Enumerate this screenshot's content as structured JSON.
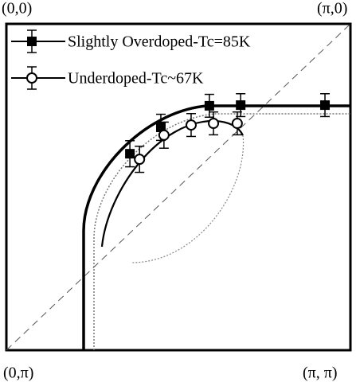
{
  "chart_data": {
    "type": "scatter",
    "annotations": [
      "(0,0)",
      "(π,0)",
      "(0,π)",
      "(π, π)"
    ],
    "xlim": [
      0,
      1
    ],
    "ylim": [
      1,
      0
    ],
    "series": [
      {
        "name": "Slightly Overdoped-Tc=85K",
        "marker": "square",
        "color": "#000000",
        "x": [
          0.359,
          0.449,
          0.59,
          0.681,
          0.926
        ],
        "values": [
          0.398,
          0.317,
          0.251,
          0.249,
          0.249
        ],
        "errors": [
          0.04,
          0.04,
          0.035,
          0.035,
          0.035
        ]
      },
      {
        "name": "Underdoped-Tc~67K",
        "marker": "circle",
        "color": "#000000",
        "x": [
          0.387,
          0.458,
          0.537,
          0.602,
          0.671
        ],
        "values": [
          0.415,
          0.341,
          0.31,
          0.305,
          0.305
        ],
        "errors": [
          0.04,
          0.04,
          0.035,
          0.035,
          0.035
        ]
      }
    ]
  }
}
